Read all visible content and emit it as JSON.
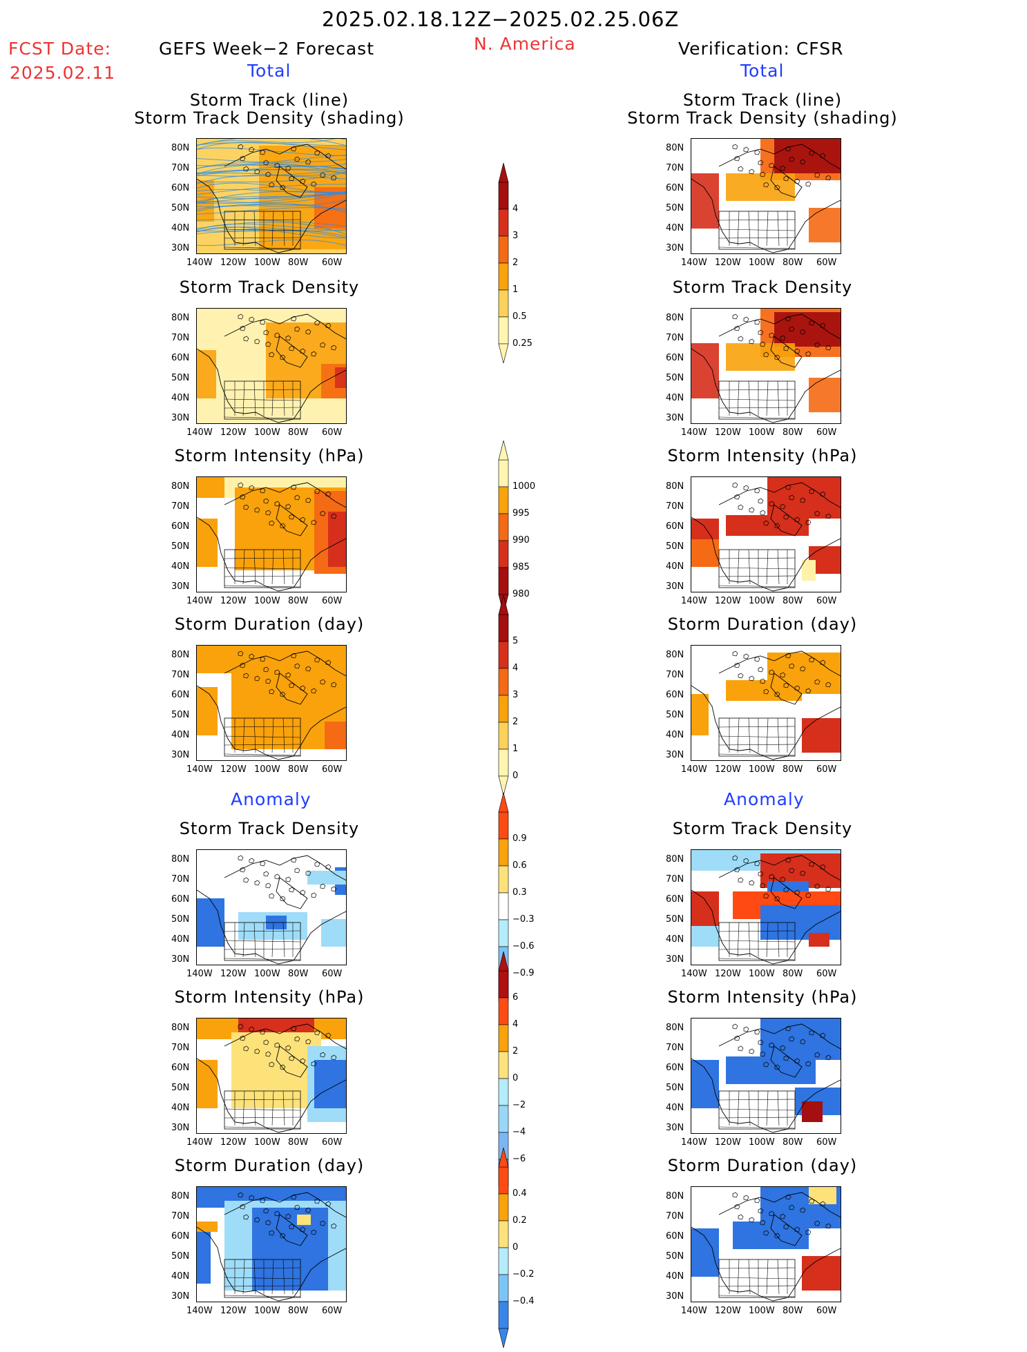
{
  "header": {
    "date_range": "2025.02.18.12Z−2025.02.25.06Z",
    "fcst_label": "FCST Date:",
    "fcst_date": "2025.02.11",
    "region": "N. America",
    "left_title": "GEFS Week−2 Forecast",
    "right_title": "Verification: CFSR",
    "section_total": "Total",
    "section_anomaly": "Anomaly"
  },
  "panel_titles": {
    "track_line": "Storm Track (line)",
    "track_shading": "Storm Track Density (shading)",
    "track_density": "Storm Track Density",
    "intensity": "Storm Intensity (hPa)",
    "duration": "Storm Duration (day)"
  },
  "axes": {
    "lat_labels": [
      "80N",
      "70N",
      "60N",
      "50N",
      "40N",
      "30N"
    ],
    "lon_labels": [
      "140W",
      "120W",
      "100W",
      "80W",
      "60W"
    ]
  },
  "colorbars": [
    {
      "name": "track-density-total",
      "labels": [
        "4",
        "3",
        "2",
        "1",
        "0.5",
        "0.25"
      ],
      "colors": [
        "#a50f0f",
        "#d62f1c",
        "#f56a14",
        "#f9a20c",
        "#fcd15a",
        "#fff5b0"
      ],
      "direction": "top-end"
    },
    {
      "name": "intensity-total",
      "labels": [
        "1000",
        "995",
        "990",
        "985",
        "980"
      ],
      "colors": [
        "#fff5b0",
        "#f9a20c",
        "#f56a14",
        "#d62f1c",
        "#a50f0f"
      ],
      "direction": "bottom-end"
    },
    {
      "name": "duration-total",
      "labels": [
        "5",
        "4",
        "3",
        "2",
        "1",
        "0"
      ],
      "colors": [
        "#a50f0f",
        "#d62f1c",
        "#f56a14",
        "#f9a20c",
        "#fcd15a",
        "#fff5b0"
      ],
      "direction": "top-end"
    },
    {
      "name": "density-anomaly",
      "labels": [
        "0.9",
        "0.6",
        "0.3",
        "−0.3",
        "−0.6",
        "−0.9"
      ],
      "colors": [
        "#ff4a14",
        "#f9a20c",
        "#fde27a",
        "#ffffff",
        "#b4ecfa",
        "#7cc4f5",
        "#3a86e8"
      ],
      "direction": "both"
    },
    {
      "name": "intensity-anomaly",
      "labels": [
        "6",
        "4",
        "2",
        "0",
        "−2",
        "−4",
        "−6"
      ],
      "colors": [
        "#b01010",
        "#ff4a14",
        "#f9a20c",
        "#fde27a",
        "#b4ecfa",
        "#9ad7f7",
        "#7cb6f2",
        "#3a86e8"
      ],
      "direction": "both"
    },
    {
      "name": "duration-anomaly",
      "labels": [
        "0.4",
        "0.2",
        "0",
        "−0.2",
        "−0.4"
      ],
      "colors": [
        "#ff4a14",
        "#f9a20c",
        "#fde27a",
        "#b4ecfa",
        "#7cc4f5",
        "#3a86e8"
      ],
      "direction": "both"
    }
  ]
}
